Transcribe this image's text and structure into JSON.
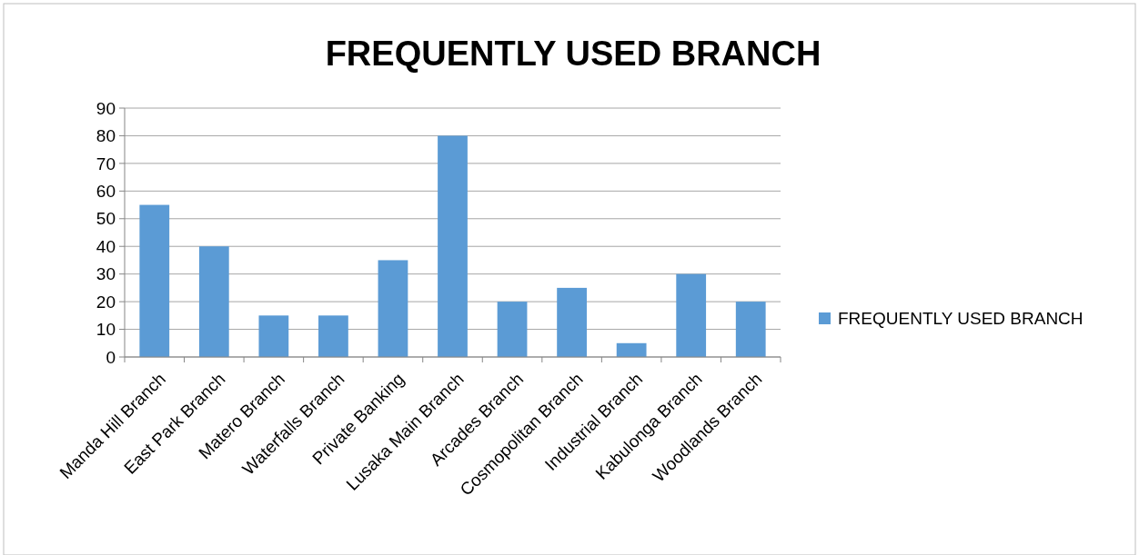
{
  "chart_data": {
    "type": "bar",
    "title": "FREQUENTLY USED BRANCH",
    "categories": [
      "Manda Hill Branch",
      "East Park Branch",
      "Matero Branch",
      "Waterfalls Branch",
      "Private Banking",
      "Lusaka Main Branch",
      "Arcades Branch",
      "Cosmopolitan Branch",
      "Industrial Branch",
      "Kabulonga Branch",
      "Woodlands Branch"
    ],
    "series": [
      {
        "name": "FREQUENTLY USED BRANCH",
        "color": "#5b9bd5",
        "values": [
          55,
          40,
          15,
          15,
          35,
          80,
          20,
          25,
          5,
          30,
          20
        ]
      }
    ],
    "ylim": [
      0,
      90
    ],
    "yticks": [
      0,
      10,
      20,
      30,
      40,
      50,
      60,
      70,
      80,
      90
    ],
    "grid": "y",
    "legend": "right"
  }
}
